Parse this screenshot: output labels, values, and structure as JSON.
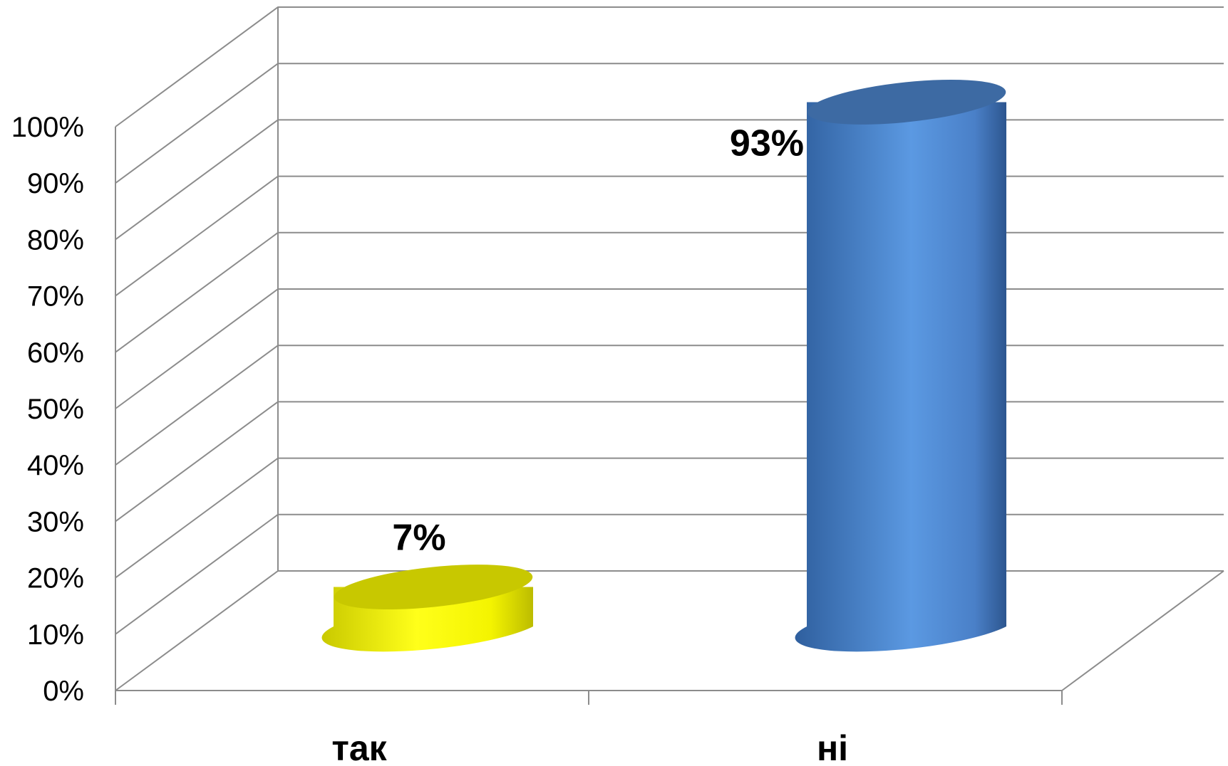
{
  "chart_data": {
    "type": "bar",
    "style": "3d-cylinder",
    "categories": [
      "так",
      "ні"
    ],
    "values": [
      7,
      93
    ],
    "value_format": "percent",
    "data_labels": [
      "7%",
      "93%"
    ],
    "colors": [
      "#f2f200",
      "#4f86d2"
    ],
    "ylim": [
      0,
      100
    ],
    "yticks": [
      0,
      10,
      20,
      30,
      40,
      50,
      60,
      70,
      80,
      90,
      100
    ],
    "ytick_labels": [
      "0%",
      "10%",
      "20%",
      "30%",
      "40%",
      "50%",
      "60%",
      "70%",
      "80%",
      "90%",
      "100%"
    ],
    "grid": true,
    "legend": "none",
    "title": "",
    "xlabel": "",
    "ylabel": ""
  }
}
